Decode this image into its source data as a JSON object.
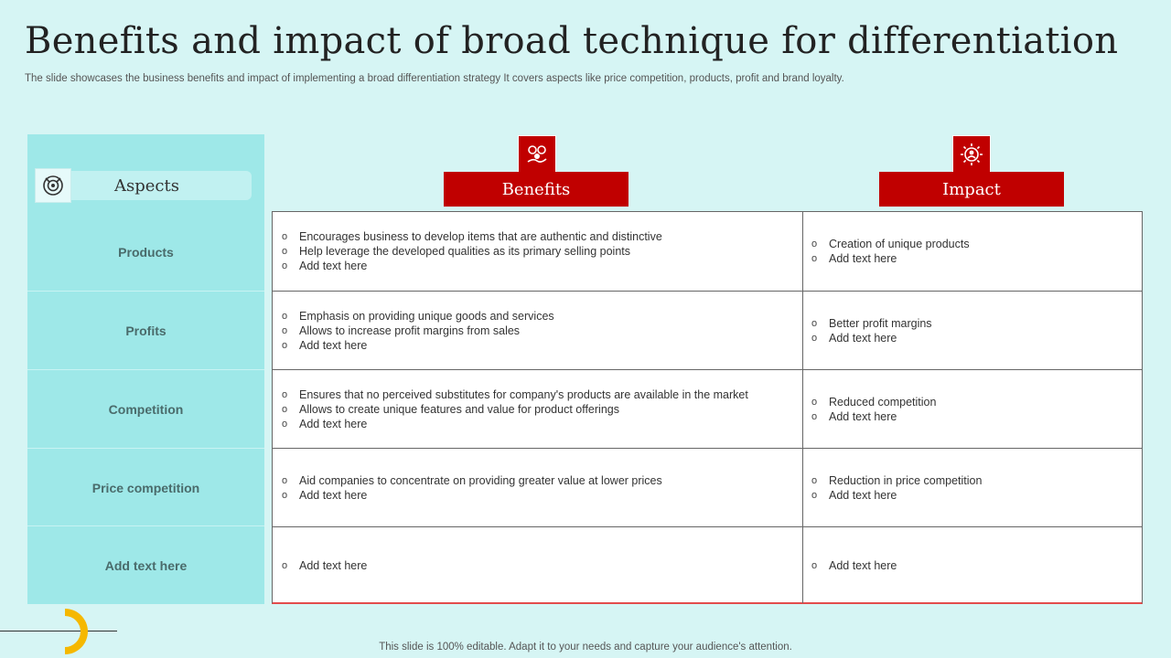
{
  "title": "Benefits and impact of broad technique for differentiation",
  "subtitle": "The slide showcases the business benefits and impact of implementing a broad differentiation strategy It covers aspects like price competition, products, profit and brand loyalty.",
  "aspects_header": "Aspects",
  "benefits_header": "Benefits",
  "impact_header": "Impact",
  "rows": [
    {
      "aspect": "Products",
      "benefits": [
        "Encourages business to develop  items that are authentic and distinctive",
        "Help leverage  the developed  qualities as its primary selling points",
        "Add text here"
      ],
      "impacts": [
        "Creation  of unique  products",
        "Add text here"
      ]
    },
    {
      "aspect": "Profits",
      "benefits": [
        "Emphasis on providing  unique goods and services",
        "Allows to increase  profit margins from sales",
        "Add text here"
      ],
      "impacts": [
        "Better profit  margins",
        "Add text here"
      ]
    },
    {
      "aspect": "Competition",
      "benefits": [
        "Ensures that no perceived  substitutes for company's products are available   in the market",
        "Allows to create unique  features  and value  for product offerings",
        "Add text here"
      ],
      "impacts": [
        "Reduced  competition",
        "Add text here"
      ]
    },
    {
      "aspect": "Price competition",
      "benefits": [
        "Aid companies to concentrate on providing  greater value  at lower prices",
        "Add text here"
      ],
      "impacts": [
        "Reduction  in price  competition",
        "Add text here"
      ]
    },
    {
      "aspect": "Add text here",
      "benefits": [
        "Add text here"
      ],
      "impacts": [
        "Add text here"
      ]
    }
  ],
  "bullet": "o",
  "footer": "This slide is 100% editable. Adapt it to your needs and capture your audience's attention.",
  "colors": {
    "accent": "#c00000",
    "panel": "#9ee8e8",
    "background": "#d6f5f4",
    "decoration": "#f5b800"
  }
}
